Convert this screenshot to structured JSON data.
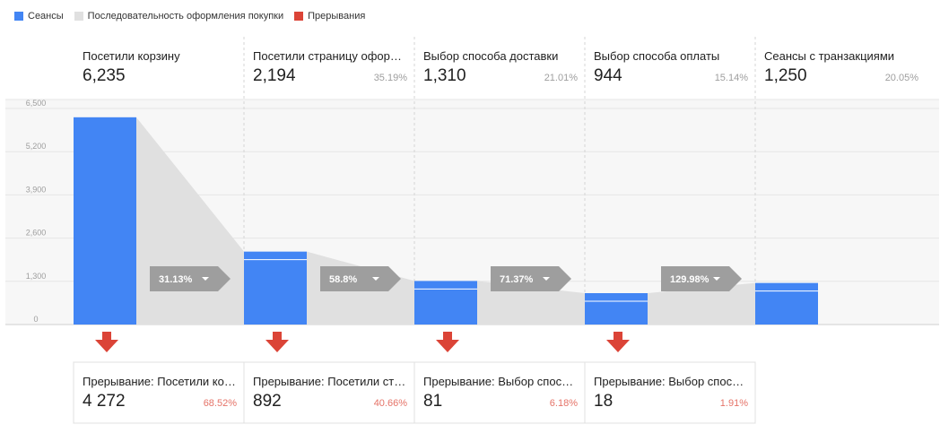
{
  "legend": [
    {
      "label": "Сеансы",
      "color": "#4285f4"
    },
    {
      "label": "Последовательность оформления покупки",
      "color": "#e0e0e0"
    },
    {
      "label": "Прерывания",
      "color": "#db4437"
    }
  ],
  "chart_data": {
    "type": "bar",
    "ylim": [
      0,
      6500
    ],
    "yticks": [
      0,
      1300,
      2600,
      3900,
      5200,
      6500
    ],
    "ytick_labels": [
      "0",
      "1,300",
      "2,600",
      "3,900",
      "5,200",
      "6,500"
    ],
    "steps": [
      {
        "label": "Посетили корзину",
        "value": 6235,
        "value_text": "6,235",
        "pct": ""
      },
      {
        "label": "Посетили страницу офор…",
        "value": 2194,
        "value_text": "2,194",
        "pct": "35.19%"
      },
      {
        "label": "Выбор способа доставки",
        "value": 1310,
        "value_text": "1,310",
        "pct": "21.01%"
      },
      {
        "label": "Выбор способа оплаты",
        "value": 944,
        "value_text": "944",
        "pct": "15.14%"
      },
      {
        "label": "Сеансы с транзакциями",
        "value": 1250,
        "value_text": "1,250",
        "pct": "20.05%"
      }
    ],
    "conversions": [
      "31.13%",
      "58.8%",
      "71.37%",
      "129.98%"
    ],
    "dropoffs": [
      {
        "label": "Прерывание: Посетили ко…",
        "value": 4272,
        "value_text": "4 272",
        "pct": "68.52%"
      },
      {
        "label": "Прерывание: Посетили ст…",
        "value": 892,
        "value_text": "892",
        "pct": "40.66%"
      },
      {
        "label": "Прерывание: Выбор спос…",
        "value": 81,
        "value_text": "81",
        "pct": "6.18%"
      },
      {
        "label": "Прерывание: Выбор спос…",
        "value": 18,
        "value_text": "18",
        "pct": "1.91%"
      }
    ],
    "colors": {
      "bar": "#4285f4",
      "flow": "#e0e0e0",
      "drop": "#db4437",
      "conv": "#9e9e9e"
    }
  }
}
